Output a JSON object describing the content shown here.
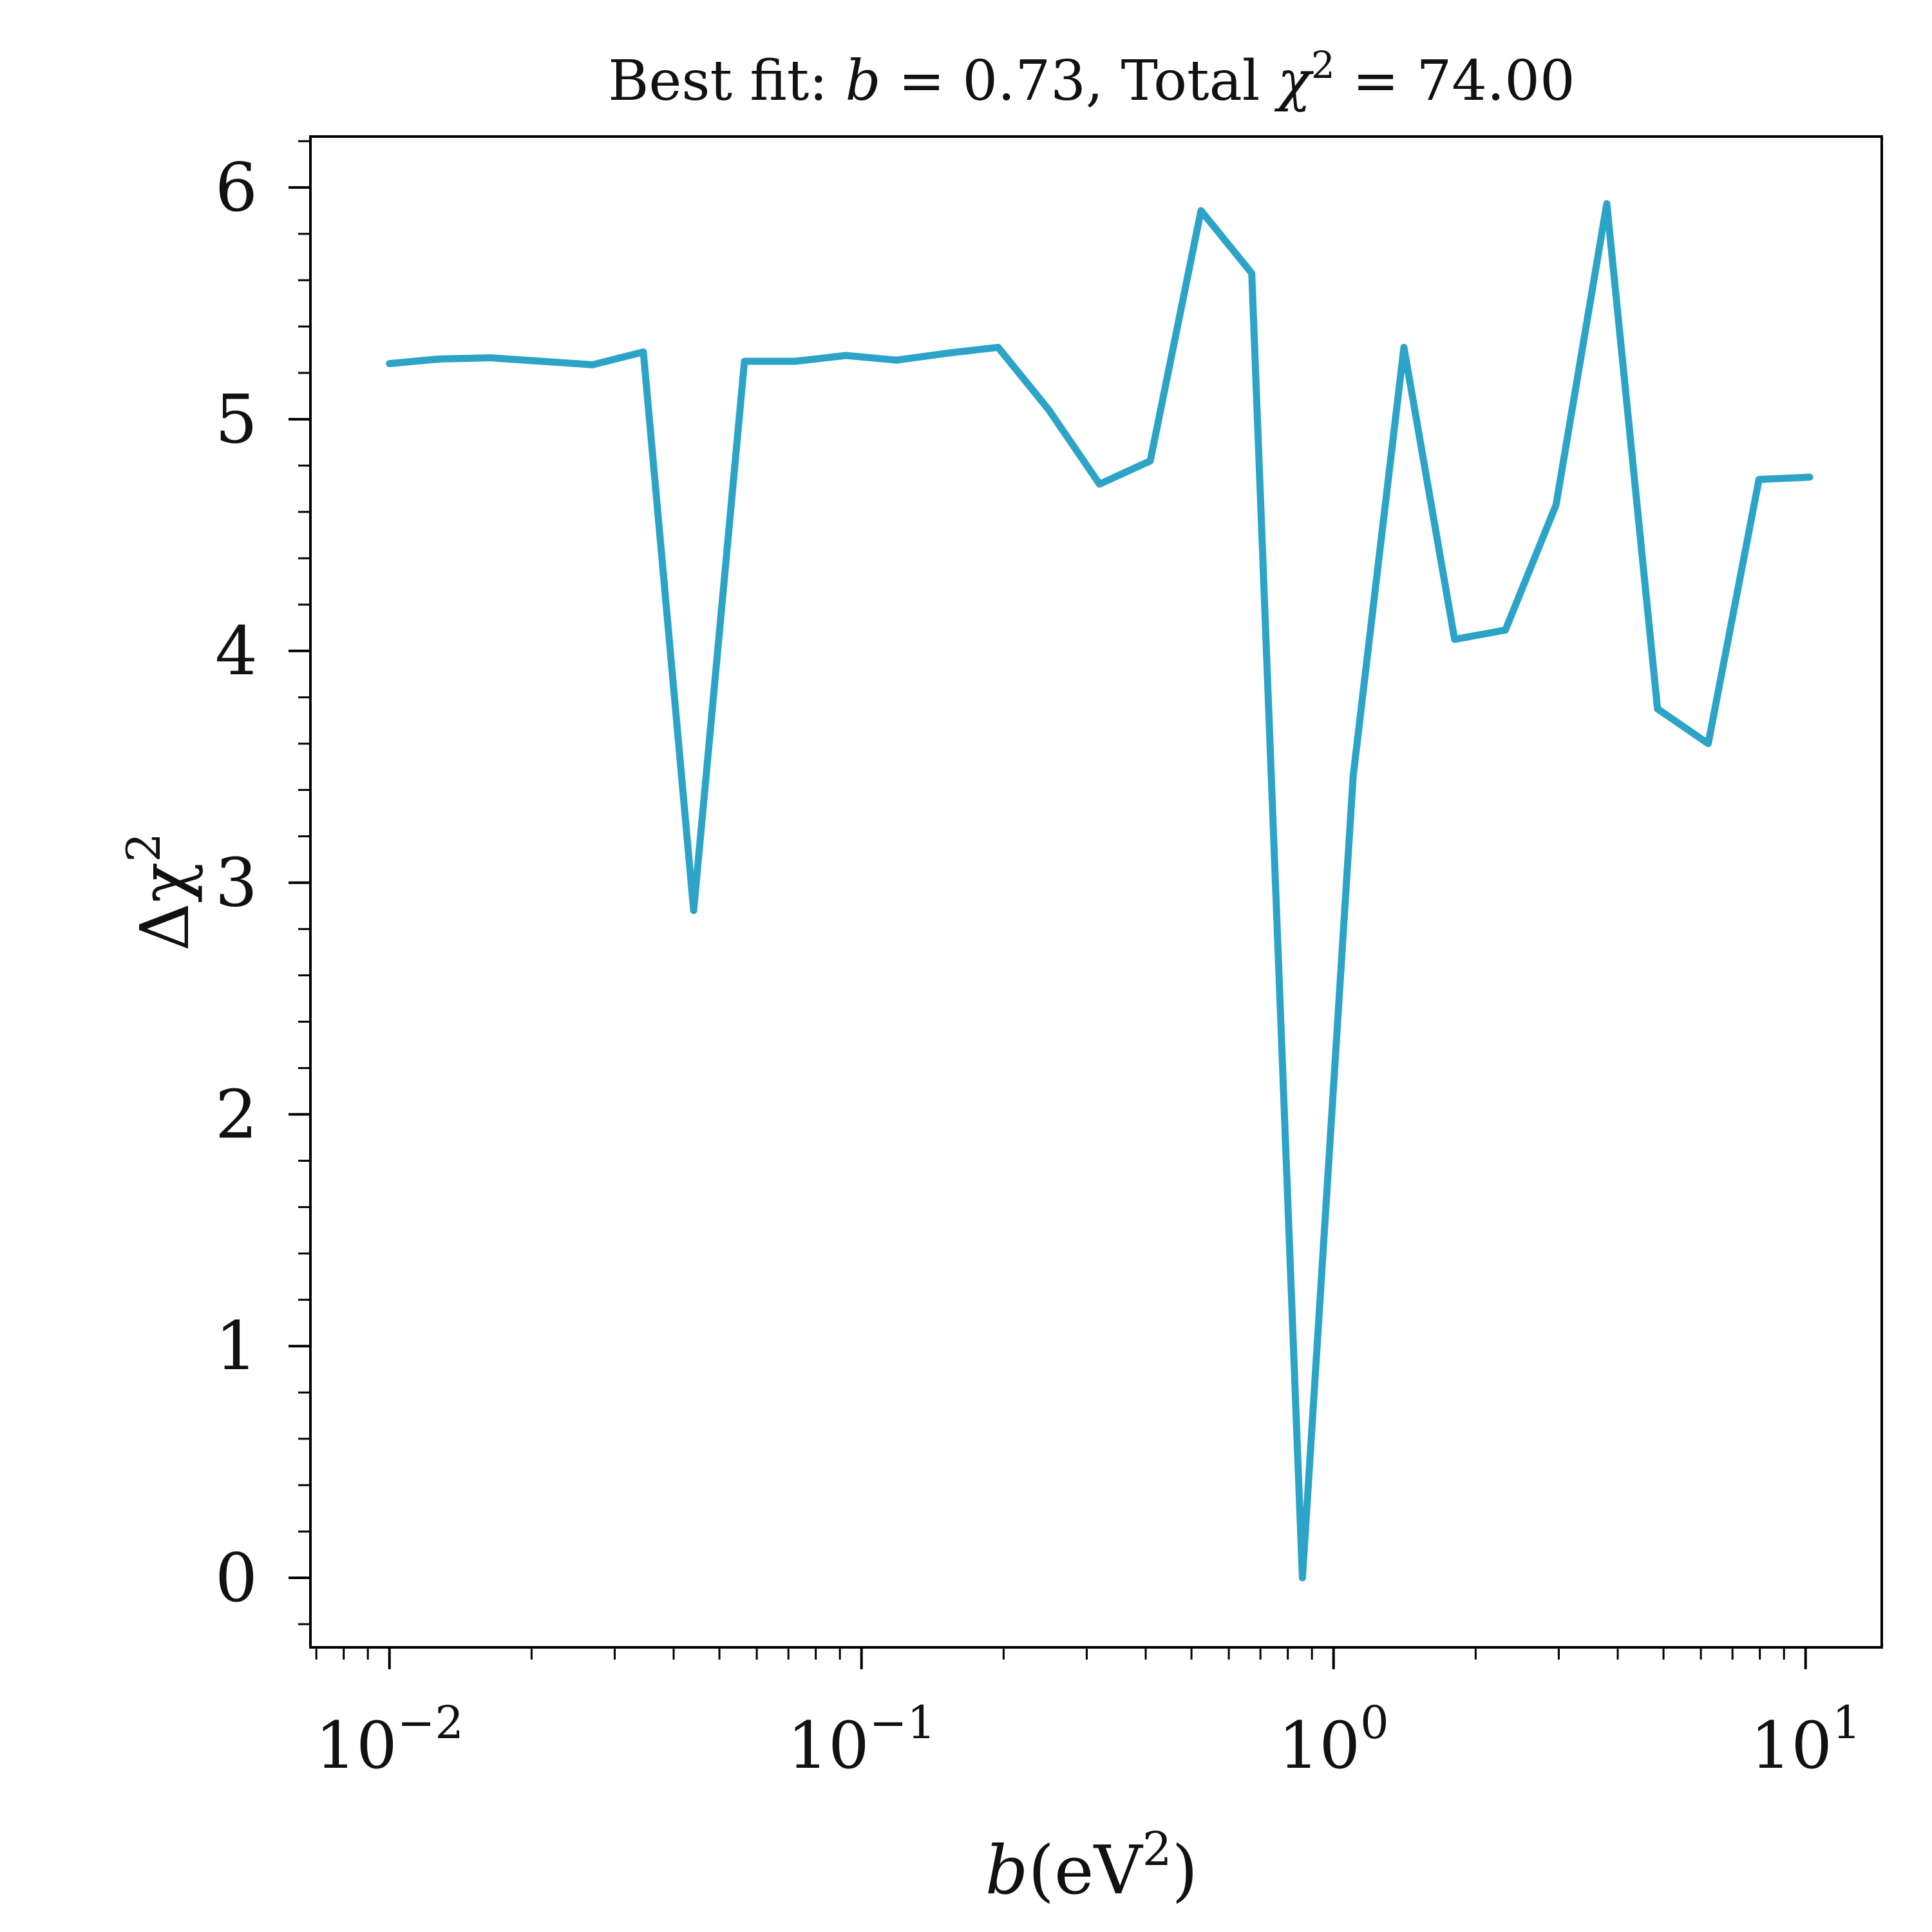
{
  "chart_data": {
    "type": "line",
    "title": {
      "prefix": "Best fit: ",
      "var": "b",
      "mid": " = 0.73, Total ",
      "chi": "χ",
      "sup": "2",
      "suffix": " = 74.00"
    },
    "xlabel": {
      "var": "b",
      "pre": "(eV",
      "sup": "2",
      "post": ")"
    },
    "ylabel": {
      "pre": "Δχ",
      "sup": "2"
    },
    "x_scale": "log",
    "xlim": [
      0.0068,
      14.5
    ],
    "ylim": [
      -0.3,
      6.22
    ],
    "x_ticks": [
      {
        "base": "10",
        "exp": "−2",
        "value": 0.01
      },
      {
        "base": "10",
        "exp": "−1",
        "value": 0.1
      },
      {
        "base": "10",
        "exp": "0",
        "value": 1
      },
      {
        "base": "10",
        "exp": "1",
        "value": 10
      }
    ],
    "y_ticks": [
      "0",
      "1",
      "2",
      "3",
      "4",
      "5",
      "6"
    ],
    "grid": false,
    "line_color": "#2ba4c8",
    "series": [
      {
        "x": [
          0.01,
          0.0128,
          0.0164,
          0.021,
          0.0269,
          0.0345,
          0.0441,
          0.0565,
          0.0724,
          0.0927,
          0.1187,
          0.152,
          0.1947,
          0.2494,
          0.3193,
          0.409,
          0.5238,
          0.6709,
          0.8592,
          1.1004,
          1.4094,
          1.805,
          2.3117,
          2.9606,
          3.7916,
          4.856,
          6.2191,
          7.965,
          10.2
        ],
        "y": [
          5.24,
          5.26,
          5.265,
          5.25,
          5.235,
          5.29,
          2.88,
          5.25,
          5.25,
          5.275,
          5.255,
          5.285,
          5.31,
          5.04,
          4.72,
          4.82,
          5.9,
          5.63,
          0.0,
          3.46,
          5.31,
          4.05,
          4.09,
          4.63,
          5.93,
          3.75,
          3.6,
          4.74,
          4.75
        ]
      }
    ]
  }
}
